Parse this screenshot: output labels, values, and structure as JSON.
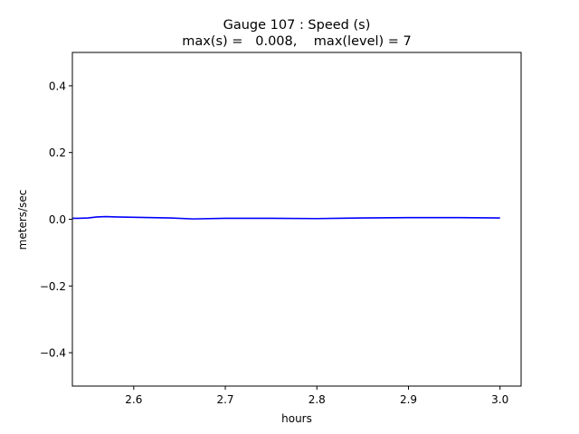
{
  "chart_data": {
    "type": "line",
    "title": "Gauge 107 : Speed (s)",
    "subtitle": "max(s) =   0.008,    max(level) = 7",
    "xlabel": "hours",
    "ylabel": "meters/sec",
    "xlim": [
      2.533,
      3.023
    ],
    "ylim": [
      -0.5,
      0.5
    ],
    "xticks": [
      2.6,
      2.7,
      2.8,
      2.9,
      3.0
    ],
    "xtick_labels": [
      "2.6",
      "2.7",
      "2.8",
      "2.9",
      "3.0"
    ],
    "yticks": [
      -0.4,
      -0.2,
      0.0,
      0.2,
      0.4
    ],
    "ytick_labels": [
      "−0.4",
      "−0.2",
      "0.0",
      "0.2",
      "0.4"
    ],
    "grid": false,
    "series": [
      {
        "color": "#0000ff",
        "x": [
          2.533,
          2.54,
          2.55,
          2.56,
          2.57,
          2.58,
          2.6,
          2.62,
          2.64,
          2.665,
          2.7,
          2.75,
          2.8,
          2.85,
          2.9,
          2.95,
          3.0
        ],
        "y": [
          0.003,
          0.003,
          0.004,
          0.007,
          0.008,
          0.007,
          0.006,
          0.005,
          0.004,
          0.001,
          0.003,
          0.003,
          0.002,
          0.004,
          0.005,
          0.005,
          0.004
        ]
      }
    ]
  }
}
